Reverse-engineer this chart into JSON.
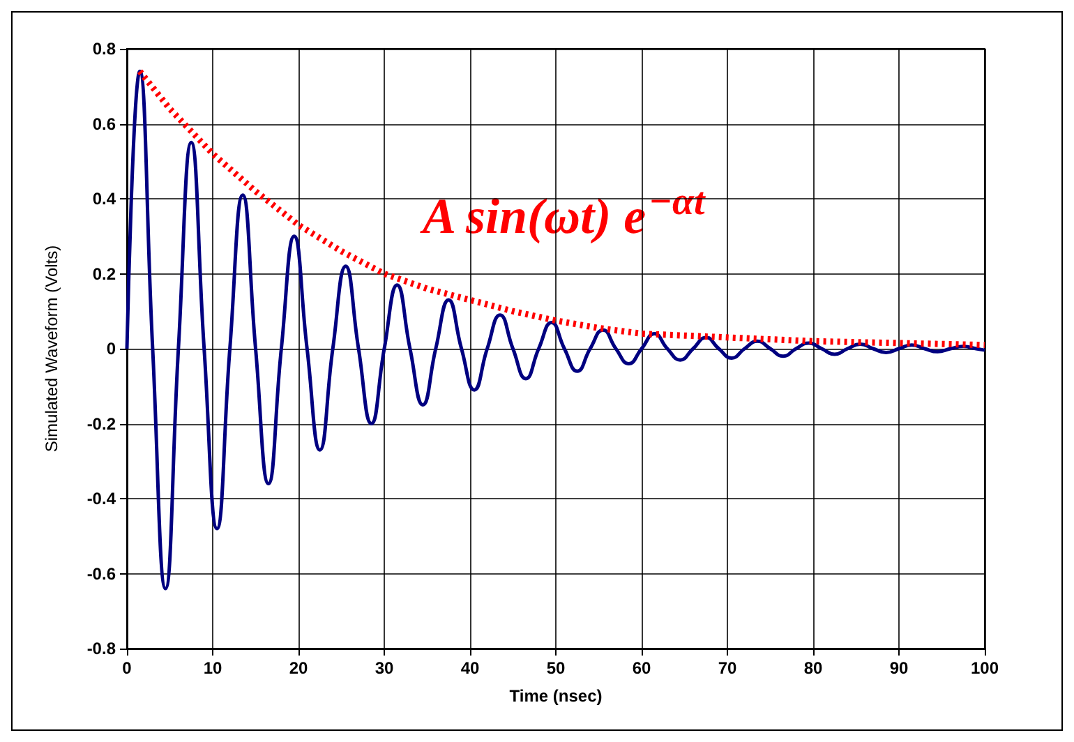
{
  "chart_data": {
    "type": "line",
    "xlabel": "Time (nsec)",
    "ylabel": "Simulated Waveform (Volts)",
    "xlim": [
      0,
      100
    ],
    "xticks": [
      0,
      10,
      20,
      30,
      40,
      50,
      60,
      70,
      80,
      90,
      100
    ],
    "ylim": [
      -0.8,
      0.8
    ],
    "yticks": [
      -0.8,
      -0.6,
      -0.4,
      -0.2,
      0,
      0.2,
      0.4,
      0.6,
      0.8
    ],
    "grid": true,
    "marker": "none",
    "annotations": [
      "A sin(ωt) e$^{−αt}$"
    ],
    "series": [
      {
        "color": "#000080",
        "line_style": "solid",
        "x": [
          0,
          1.5,
          3,
          4.5,
          6,
          7.5,
          9,
          10.5,
          12,
          13.5,
          15,
          16.5,
          18,
          19.5,
          21,
          22.5,
          24,
          25.5,
          27,
          28.5,
          30,
          31.5,
          33,
          34.5,
          36,
          37.5,
          39,
          40.5,
          42,
          43.5,
          45,
          46.5,
          48,
          49.5,
          51,
          52.5,
          54,
          55.5,
          57,
          58.5,
          60,
          61.5,
          63,
          64.5,
          66,
          67.5,
          69,
          70.5,
          72,
          73.5,
          75,
          76.5,
          78,
          79.5,
          81,
          82.5,
          84,
          85.5,
          87,
          88.5,
          90,
          91.5,
          93,
          94.5,
          96,
          97.5,
          99,
          100
        ],
        "values": [
          0,
          0.74,
          0,
          -0.64,
          0,
          0.55,
          0,
          -0.48,
          0,
          0.41,
          0,
          -0.36,
          0,
          0.3,
          0,
          -0.27,
          0,
          0.22,
          0,
          -0.2,
          0,
          0.17,
          0,
          -0.15,
          0,
          0.13,
          0,
          -0.11,
          0,
          0.09,
          0,
          -0.08,
          0,
          0.07,
          0,
          -0.06,
          0,
          0.05,
          0,
          -0.04,
          0,
          0.04,
          0,
          -0.03,
          0,
          0.03,
          0,
          -0.025,
          0,
          0.02,
          0,
          -0.02,
          0,
          0.015,
          0,
          -0.015,
          0,
          0.012,
          0,
          -0.01,
          0,
          0.01,
          0,
          -0.008,
          0,
          0.006,
          0,
          -0.004
        ]
      },
      {
        "color": "#ff0000",
        "line_style": "dotted",
        "x": [
          1.5,
          5,
          10,
          15,
          20,
          25,
          30,
          35,
          40,
          45,
          50,
          55,
          60,
          65,
          70,
          80,
          90,
          100
        ],
        "values": [
          0.74,
          0.64,
          0.52,
          0.42,
          0.33,
          0.26,
          0.2,
          0.16,
          0.13,
          0.1,
          0.075,
          0.055,
          0.04,
          0.035,
          0.03,
          0.02,
          0.015,
          0.01
        ]
      }
    ]
  }
}
